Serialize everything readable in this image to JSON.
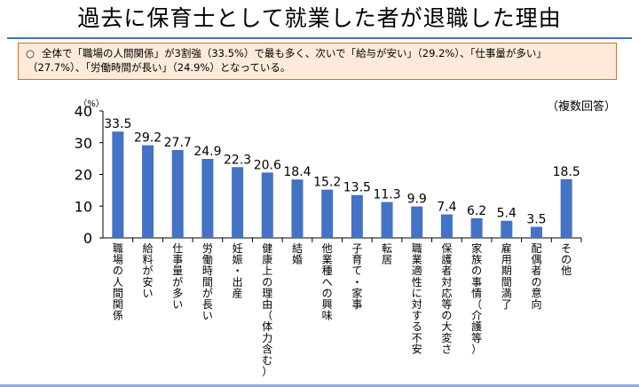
{
  "title": "過去に保育士として就業した者が退職した理由",
  "summary": {
    "mark": "○",
    "line1": "全体で「職場の人間関係」が3割強（33.5%）で最も多く、次いで「給与が安い」（29.2%）、「仕事量が多い」",
    "line2": "（27.7%）、「労働時間が長い」（24.9%）となっている。"
  },
  "note": "（複数回答）",
  "colors": {
    "bar": "#4472c4",
    "axis": "#000000",
    "summary_bg": "#fdeada",
    "summary_border": "#e46c0a"
  },
  "chart_data": {
    "type": "bar",
    "unit_label": "（%）",
    "ylim": [
      0,
      40
    ],
    "yticks": [
      0,
      10,
      20,
      30,
      40
    ],
    "categories": [
      "職場の人間関係",
      "給料が安い",
      "仕事量が多い",
      "労働時間が長い",
      "妊娠・出産",
      "健康上の理由（体力含む）",
      "結婚",
      "他業種への興味",
      "子育て・家事",
      "転居",
      "職業適性に対する不安",
      "保護者対応等の大変さ",
      "家族の事情（介護等）",
      "雇用期間満了",
      "配偶者の意向",
      "その他"
    ],
    "values": [
      33.5,
      29.2,
      27.7,
      24.9,
      22.3,
      20.6,
      18.4,
      15.2,
      13.5,
      11.3,
      9.9,
      7.4,
      6.2,
      5.4,
      3.5,
      18.5
    ],
    "labels": [
      "33.5",
      "29.2",
      "27.7",
      "24.9",
      "22.3",
      "20.6",
      "18.4",
      "15.2",
      "13.5",
      "11.3",
      "9.9",
      "7.4",
      "6.2",
      "5.4",
      "3.5",
      "18.5"
    ],
    "grid": false
  }
}
